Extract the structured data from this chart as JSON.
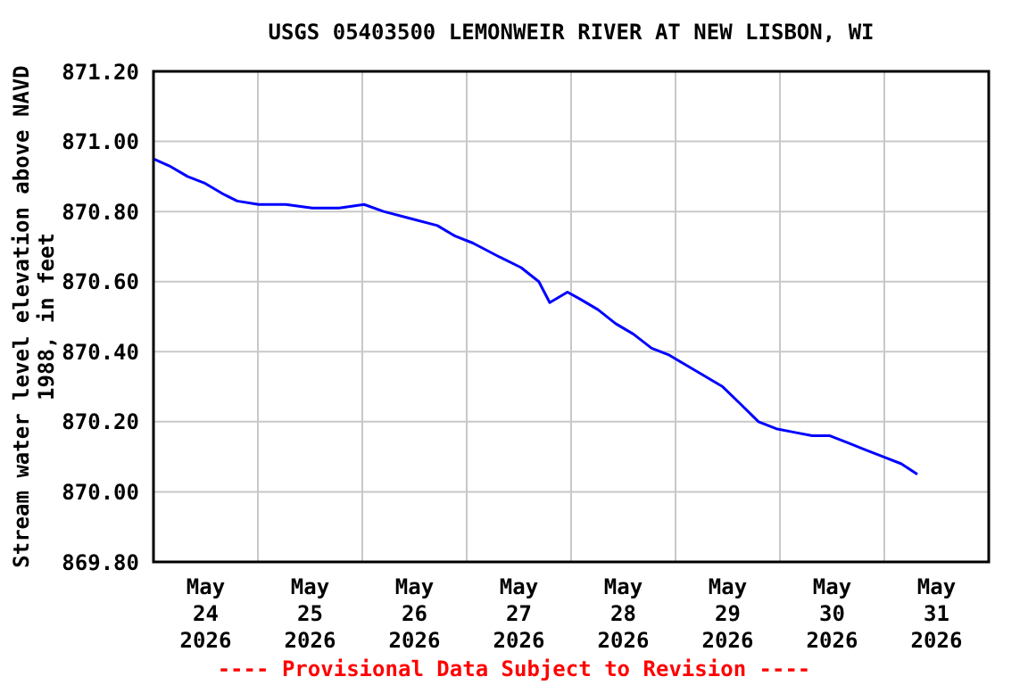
{
  "chart_data": {
    "type": "line",
    "title": "USGS 05403500 LEMONWEIR RIVER AT NEW LISBON, WI",
    "ylabel": "Stream water level elevation above NAVD 1988, in feet",
    "annotations": [
      "---- Provisional Data Subject to Revision ----"
    ],
    "x": [
      "2026-05-24T00:00",
      "2026-05-24T03:40",
      "2026-05-24T07:50",
      "2026-05-24T11:55",
      "2026-05-24T16:00",
      "2026-05-24T19:15",
      "2026-05-25T00:10",
      "2026-05-25T06:25",
      "2026-05-25T12:30",
      "2026-05-25T18:40",
      "2026-05-26T00:25",
      "2026-05-26T04:55",
      "2026-05-26T11:05",
      "2026-05-26T17:15",
      "2026-05-26T21:20",
      "2026-05-27T01:25",
      "2026-05-27T07:35",
      "2026-05-27T12:30",
      "2026-05-27T16:35",
      "2026-05-27T19:05",
      "2026-05-27T23:10",
      "2026-05-28T02:05",
      "2026-05-28T06:10",
      "2026-05-28T10:15",
      "2026-05-28T14:20",
      "2026-05-28T18:30",
      "2026-05-28T22:35",
      "2026-05-29T02:40",
      "2026-05-29T06:45",
      "2026-05-29T10:50",
      "2026-05-29T15:00",
      "2026-05-29T19:05",
      "2026-05-29T23:10",
      "2026-05-30T03:15",
      "2026-05-30T07:25",
      "2026-05-30T11:30",
      "2026-05-30T15:35",
      "2026-05-30T19:40",
      "2026-05-30T23:45",
      "2026-05-31T03:55",
      "2026-05-31T07:35"
    ],
    "series": [
      {
        "color": "#0000ff",
        "values": [
          870.95,
          870.93,
          870.9,
          870.88,
          870.85,
          870.83,
          870.82,
          870.82,
          870.81,
          870.81,
          870.82,
          870.8,
          870.78,
          870.76,
          870.73,
          870.71,
          870.67,
          870.64,
          870.6,
          870.54,
          870.57,
          870.55,
          870.52,
          870.48,
          870.45,
          870.41,
          870.39,
          870.36,
          870.33,
          870.3,
          870.25,
          870.2,
          870.18,
          870.17,
          870.16,
          870.16,
          870.14,
          870.12,
          870.1,
          870.08,
          870.05
        ]
      }
    ],
    "xlim": [
      "2026-05-24T00:00",
      "2026-06-01T00:00"
    ],
    "xticks": [
      {
        "value": "2026-05-24T12:00",
        "label": "May\n24\n2026"
      },
      {
        "value": "2026-05-25T00:00",
        "label": null
      },
      {
        "value": "2026-05-25T12:00",
        "label": "May\n25\n2026"
      },
      {
        "value": "2026-05-26T00:00",
        "label": null
      },
      {
        "value": "2026-05-26T12:00",
        "label": "May\n26\n2026"
      },
      {
        "value": "2026-05-27T00:00",
        "label": null
      },
      {
        "value": "2026-05-27T12:00",
        "label": "May\n27\n2026"
      },
      {
        "value": "2026-05-28T00:00",
        "label": null
      },
      {
        "value": "2026-05-28T12:00",
        "label": "May\n28\n2026"
      },
      {
        "value": "2026-05-29T00:00",
        "label": null
      },
      {
        "value": "2026-05-29T12:00",
        "label": "May\n29\n2026"
      },
      {
        "value": "2026-05-30T00:00",
        "label": null
      },
      {
        "value": "2026-05-30T12:00",
        "label": "May\n30\n2026"
      },
      {
        "value": "2026-05-31T00:00",
        "label": null
      },
      {
        "value": "2026-05-31T12:00",
        "label": "May\n31\n2026"
      }
    ],
    "ylim": [
      869.8,
      871.2
    ],
    "yticks": [
      {
        "value": 869.8,
        "label": "869.80"
      },
      {
        "value": 870,
        "label": "870.00"
      },
      {
        "value": 870.2,
        "label": "870.20"
      },
      {
        "value": 870.4,
        "label": "870.40"
      },
      {
        "value": 870.6,
        "label": "870.60"
      },
      {
        "value": 870.8,
        "label": "870.80"
      },
      {
        "value": 871,
        "label": "871.00"
      },
      {
        "value": 871.2,
        "label": "871.20"
      }
    ],
    "grid": true,
    "legend": false,
    "marker": "none",
    "line_style": "solid"
  }
}
